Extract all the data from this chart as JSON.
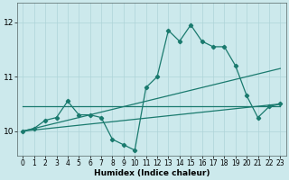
{
  "xlabel": "Humidex (Indice chaleur)",
  "xlim": [
    -0.5,
    23.5
  ],
  "ylim": [
    9.55,
    12.35
  ],
  "yticks": [
    10,
    11,
    12
  ],
  "xticks": [
    0,
    1,
    2,
    3,
    4,
    5,
    6,
    7,
    8,
    9,
    10,
    11,
    12,
    13,
    14,
    15,
    16,
    17,
    18,
    19,
    20,
    21,
    22,
    23
  ],
  "bg_color": "#cce9ec",
  "grid_color": "#aed4d8",
  "line_color": "#1a7a6e",
  "series_main": {
    "x": [
      0,
      1,
      2,
      3,
      4,
      5,
      6,
      7,
      8,
      9,
      10,
      11,
      12,
      13,
      14,
      15,
      16,
      17,
      18,
      19,
      20,
      21,
      22,
      23
    ],
    "y": [
      10.0,
      10.05,
      10.2,
      10.25,
      10.55,
      10.3,
      10.3,
      10.25,
      9.85,
      9.75,
      9.65,
      10.8,
      11.0,
      11.85,
      11.65,
      11.95,
      11.65,
      11.55,
      11.55,
      11.2,
      10.65,
      10.25,
      10.45,
      10.5
    ]
  },
  "series_linear1": {
    "x": [
      0,
      23
    ],
    "y": [
      10.0,
      10.5
    ]
  },
  "series_linear2": {
    "x": [
      0,
      23
    ],
    "y": [
      10.0,
      11.15
    ]
  },
  "series_flat": {
    "x": [
      0,
      23
    ],
    "y": [
      10.45,
      10.45
    ]
  },
  "marker": "D",
  "markersize": 2.2,
  "linewidth": 0.9,
  "tick_fontsize": 5.5,
  "xlabel_fontsize": 6.5
}
